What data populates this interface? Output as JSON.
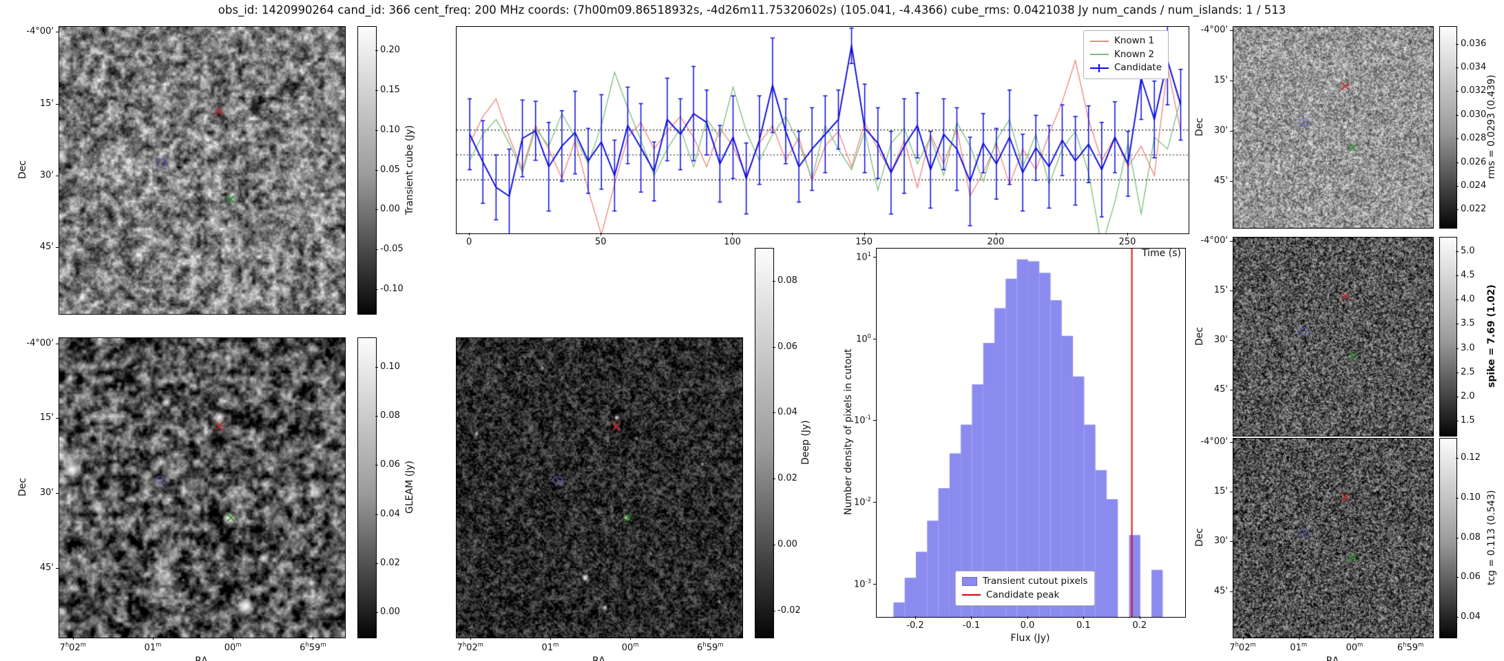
{
  "title": "obs_id: 1420990264 cand_id: 366 cent_freq: 200 MHz coords: (7h00m09.86518932s, -4d26m11.75320602s) (105.041, -4.4366) cube_rms: 0.0421038 Jy num_cands / num_islands: 1 / 513",
  "axes": {
    "dec_label": "Dec",
    "ra_label": "RA",
    "dec_ticks": [
      [
        0.02,
        "-4°00'"
      ],
      [
        0.27,
        "15'"
      ],
      [
        0.52,
        "30'"
      ],
      [
        0.77,
        "45'"
      ]
    ],
    "ra_ticks": [
      [
        0.05,
        "7h02m"
      ],
      [
        0.33,
        "01m"
      ],
      [
        0.61,
        "00m"
      ],
      [
        0.89,
        "6h59m"
      ]
    ]
  },
  "markers": {
    "red_x": [
      0.56,
      0.295
    ],
    "blue_circle": [
      0.355,
      0.475
    ],
    "green_x": [
      0.6,
      0.6
    ],
    "colors": {
      "red": "#cc2222",
      "green": "#1e8c1e",
      "blue": "#5a5ac8"
    }
  },
  "panels": {
    "transient": {
      "cbar_label": "Transient cube (Jy)",
      "vmin": -0.13,
      "vmax": 0.23,
      "cbar_ticks": [
        [
          0.2,
          "0.20"
        ],
        [
          0.15,
          "0.15"
        ],
        [
          0.1,
          "0.10"
        ],
        [
          0.05,
          "0.05"
        ],
        [
          0.0,
          "0.00"
        ],
        [
          -0.05,
          "-0.05"
        ],
        [
          -0.1,
          "-0.10"
        ]
      ]
    },
    "gleam": {
      "cbar_label": "GLEAM (Jy)",
      "vmin": -0.01,
      "vmax": 0.112,
      "cbar_ticks": [
        [
          0.1,
          "0.10"
        ],
        [
          0.08,
          "0.08"
        ],
        [
          0.06,
          "0.06"
        ],
        [
          0.04,
          "0.04"
        ],
        [
          0.02,
          "0.02"
        ],
        [
          0.0,
          "0.00"
        ]
      ]
    },
    "deep": {
      "cbar_label": "Deep (Jy)",
      "vmin": -0.028,
      "vmax": 0.09,
      "cbar_ticks": [
        [
          0.08,
          "0.08"
        ],
        [
          0.06,
          "0.06"
        ],
        [
          0.04,
          "0.04"
        ],
        [
          0.02,
          "0.02"
        ],
        [
          0.0,
          "0.00"
        ],
        [
          -0.02,
          "-0.02"
        ]
      ]
    },
    "rms": {
      "cbar_label": "rms = 0.0293 (0.439)",
      "vmin": 0.0205,
      "vmax": 0.0375,
      "cbar_ticks": [
        [
          0.036,
          "0.036"
        ],
        [
          0.034,
          "0.034"
        ],
        [
          0.032,
          "0.032"
        ],
        [
          0.03,
          "0.030"
        ],
        [
          0.028,
          "0.028"
        ],
        [
          0.026,
          "0.026"
        ],
        [
          0.024,
          "0.024"
        ],
        [
          0.022,
          "0.022"
        ]
      ]
    },
    "spike": {
      "cbar_label": "spike = 7.69 (1.02)",
      "bold": true,
      "vmin": 1.2,
      "vmax": 5.3,
      "cbar_ticks": [
        [
          5.0,
          "5.0"
        ],
        [
          4.5,
          "4.5"
        ],
        [
          4.0,
          "4.0"
        ],
        [
          3.5,
          "3.5"
        ],
        [
          3.0,
          "3.0"
        ],
        [
          2.5,
          "2.5"
        ],
        [
          2.0,
          "2.0"
        ],
        [
          1.5,
          "1.5"
        ]
      ]
    },
    "tcg": {
      "cbar_label": "tcg = 0.113 (0.543)",
      "vmin": 0.03,
      "vmax": 0.13,
      "cbar_ticks": [
        [
          0.12,
          "0.12"
        ],
        [
          0.1,
          "0.10"
        ],
        [
          0.08,
          "0.08"
        ],
        [
          0.06,
          "0.06"
        ],
        [
          0.04,
          "0.04"
        ]
      ]
    }
  },
  "chart_data": [
    {
      "type": "line",
      "title": "",
      "xlabel": "Time (s)",
      "ylabel": "",
      "xlim": [
        -5,
        273
      ],
      "ylim": [
        -0.133,
        0.217
      ],
      "x_ticks": [
        [
          0,
          "0"
        ],
        [
          50,
          "50"
        ],
        [
          100,
          "100"
        ],
        [
          150,
          "150"
        ],
        [
          200,
          "200"
        ],
        [
          250,
          "250"
        ]
      ],
      "rms_dotted_lines": [
        0.0421,
        0.0,
        -0.0421
      ],
      "legend_position": "upper right",
      "x": [
        0,
        5,
        10,
        15,
        20,
        25,
        30,
        35,
        40,
        45,
        50,
        55,
        60,
        65,
        70,
        75,
        80,
        85,
        90,
        95,
        100,
        105,
        110,
        115,
        120,
        125,
        130,
        135,
        140,
        145,
        150,
        155,
        160,
        165,
        170,
        175,
        180,
        185,
        190,
        195,
        200,
        205,
        210,
        215,
        220,
        225,
        230,
        235,
        240,
        245,
        250,
        255,
        260,
        265,
        270
      ],
      "series": [
        {
          "name": "Known 1",
          "color": "#f2837b",
          "values": [
            0.02,
            0.065,
            0.095,
            0.03,
            -0.025,
            0.05,
            0.01,
            -0.04,
            0.025,
            -0.06,
            -0.135,
            -0.05,
            0.03,
            0.055,
            0.01,
            0.04,
            0.065,
            0.03,
            -0.02,
            0.045,
            0.015,
            -0.035,
            0.02,
            0.05,
            -0.01,
            0.03,
            -0.045,
            0.015,
            0.04,
            -0.02,
            0.055,
            0.01,
            -0.03,
            0.025,
            -0.055,
            0.035,
            -0.015,
            0.045,
            -0.07,
            -0.03,
            0.02,
            -0.05,
            0.01,
            -0.025,
            0.035,
            0.09,
            0.16,
            0.06,
            -0.01,
            0.03,
            -0.02,
            0.015,
            -0.035,
            0.15,
            0.04
          ]
        },
        {
          "name": "Known 2",
          "color": "#7cbf7c",
          "values": [
            -0.01,
            0.035,
            0.06,
            0.02,
            -0.03,
            0.045,
            0.015,
            0.07,
            0.03,
            -0.015,
            0.05,
            0.14,
            0.08,
            0.025,
            -0.035,
            0.01,
            0.045,
            -0.02,
            0.06,
            0.03,
            0.115,
            0.04,
            -0.01,
            0.035,
            0.065,
            0.02,
            -0.04,
            0.05,
            0.01,
            -0.025,
            0.04,
            -0.06,
            0.02,
            0.045,
            -0.015,
            0.03,
            -0.035,
            0.055,
            0.015,
            -0.045,
            0.025,
            0.06,
            -0.02,
            0.035,
            -0.05,
            0.01,
            0.04,
            -0.03,
            -0.155,
            -0.08,
            0.02,
            -0.1,
            0.03,
            0.01,
            0.095
          ]
        },
        {
          "name": "Candidate",
          "color": "#0a0ae0",
          "values": [
            0.035,
            -0.012,
            -0.055,
            -0.07,
            0.028,
            0.041,
            -0.02,
            0.015,
            0.038,
            -0.01,
            0.022,
            -0.035,
            0.05,
            0.012,
            -0.028,
            0.06,
            0.035,
            0.07,
            0.055,
            -0.015,
            0.03,
            -0.04,
            0.025,
            0.118,
            0.04,
            -0.02,
            0.01,
            0.035,
            0.06,
            0.185,
            0.045,
            0.02,
            -0.03,
            0.015,
            0.05,
            -0.025,
            0.035,
            0.01,
            -0.045,
            0.02,
            -0.015,
            0.03,
            -0.03,
            0.012,
            -0.02,
            0.025,
            -0.01,
            0.018,
            -0.025,
            0.03,
            -0.015,
            0.13,
            0.06,
            0.16,
            0.085
          ],
          "errors": [
            0.06,
            0.07,
            0.055,
            0.08,
            0.065,
            0.05,
            0.075,
            0.06,
            0.07,
            0.055,
            0.08,
            0.06,
            0.065,
            0.075,
            0.05,
            0.07,
            0.06,
            0.08,
            0.055,
            0.065,
            0.07,
            0.06,
            0.075,
            0.08,
            0.055,
            0.06,
            0.07,
            0.065,
            0.05,
            0.03,
            0.075,
            0.06,
            0.07,
            0.08,
            0.055,
            0.065,
            0.06,
            0.07,
            0.075,
            0.05,
            0.06,
            0.08,
            0.065,
            0.055,
            0.07,
            0.06,
            0.075,
            0.065,
            0.08,
            0.06,
            0.055,
            0.07,
            0.065,
            0.075,
            0.06
          ]
        }
      ]
    },
    {
      "type": "bar",
      "title": "",
      "xlabel": "Flux (Jy)",
      "ylabel": "Number density of pixels in cutout",
      "xlim": [
        -0.27,
        0.28
      ],
      "ylog_lim": [
        -3.4,
        1.11
      ],
      "x_ticks": [
        [
          -0.2,
          "-0.2"
        ],
        [
          -0.1,
          "-0.1"
        ],
        [
          0,
          "0.0"
        ],
        [
          0.1,
          "0.1"
        ],
        [
          0.2,
          "0.2"
        ]
      ],
      "y_tick_exponents": [
        1,
        0,
        -1,
        -2,
        -3
      ],
      "bin_width": 0.02,
      "bin_centers": [
        -0.23,
        -0.21,
        -0.19,
        -0.17,
        -0.15,
        -0.13,
        -0.11,
        -0.09,
        -0.07,
        -0.05,
        -0.03,
        -0.01,
        0.01,
        0.03,
        0.05,
        0.07,
        0.09,
        0.11,
        0.13,
        0.15,
        0.17,
        0.19,
        0.21,
        0.23,
        0.25
      ],
      "values": [
        0.0006,
        0.0012,
        0.0025,
        0.006,
        0.015,
        0.04,
        0.09,
        0.28,
        0.9,
        2.4,
        5.5,
        9.5,
        9.0,
        6.5,
        3.0,
        1.1,
        0.35,
        0.09,
        0.025,
        0.011,
        0,
        0.004,
        0,
        0.0015,
        0
      ],
      "candidate_peak_flux": 0.185,
      "bar_color": "#8b8bef",
      "line_color": "#dd0000",
      "legend_labels": [
        "Transient cutout pixels",
        "Candidate peak"
      ]
    }
  ]
}
